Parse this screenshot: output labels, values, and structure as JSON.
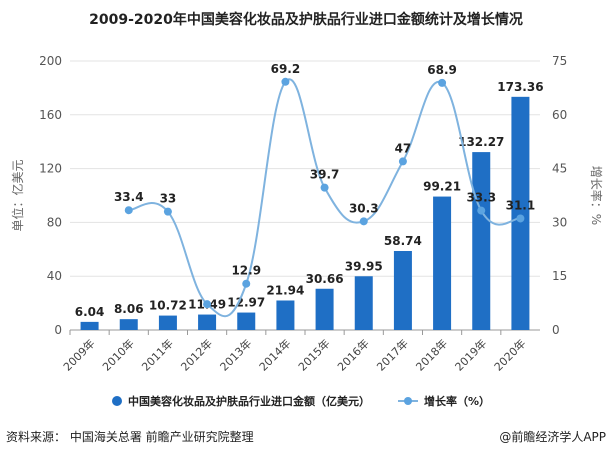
{
  "chart_data": {
    "type": "bar+line",
    "title": "2009-2020年中国美容化妆品及护肤品行业进口金额统计及增长情况",
    "categories": [
      "2009年",
      "2010年",
      "2011年",
      "2012年",
      "2013年",
      "2014年",
      "2015年",
      "2016年",
      "2017年",
      "2018年",
      "2019年",
      "2020年"
    ],
    "series": [
      {
        "name": "中国美容化妆品及护肤品行业进口金额（亿美元）",
        "type": "bar",
        "axis": "left",
        "color": "#1f6fc5",
        "values": [
          6.04,
          8.06,
          10.72,
          11.49,
          12.97,
          21.94,
          30.66,
          39.95,
          58.74,
          99.21,
          132.27,
          173.36
        ]
      },
      {
        "name": "增长率（%）",
        "type": "line",
        "axis": "right",
        "color": "#5ba3e0",
        "values": [
          null,
          33.4,
          33,
          7.2,
          12.9,
          69.2,
          39.7,
          30.3,
          47,
          68.9,
          33.3,
          31.1
        ],
        "labels": [
          null,
          "33.4",
          "33",
          null,
          "12.9",
          "69.2",
          "39.7",
          "30.3",
          "47",
          "68.9",
          "33.3",
          "31.1"
        ]
      }
    ],
    "ylabel_left": "单位：亿美元",
    "ylim_left": [
      0,
      200
    ],
    "yticks_left": [
      "0",
      "40",
      "80",
      "120",
      "160",
      "200"
    ],
    "ylabel_right": "增长率：%",
    "ylim_right": [
      0,
      75
    ],
    "yticks_right": [
      "0",
      "15",
      "30",
      "45",
      "60",
      "75"
    ],
    "grid": true,
    "legend": "bottom"
  },
  "footer": {
    "source": "资料来源：  中国海关总署 前瞻产业研究院整理",
    "brand": "@前瞻经济学人APP"
  }
}
